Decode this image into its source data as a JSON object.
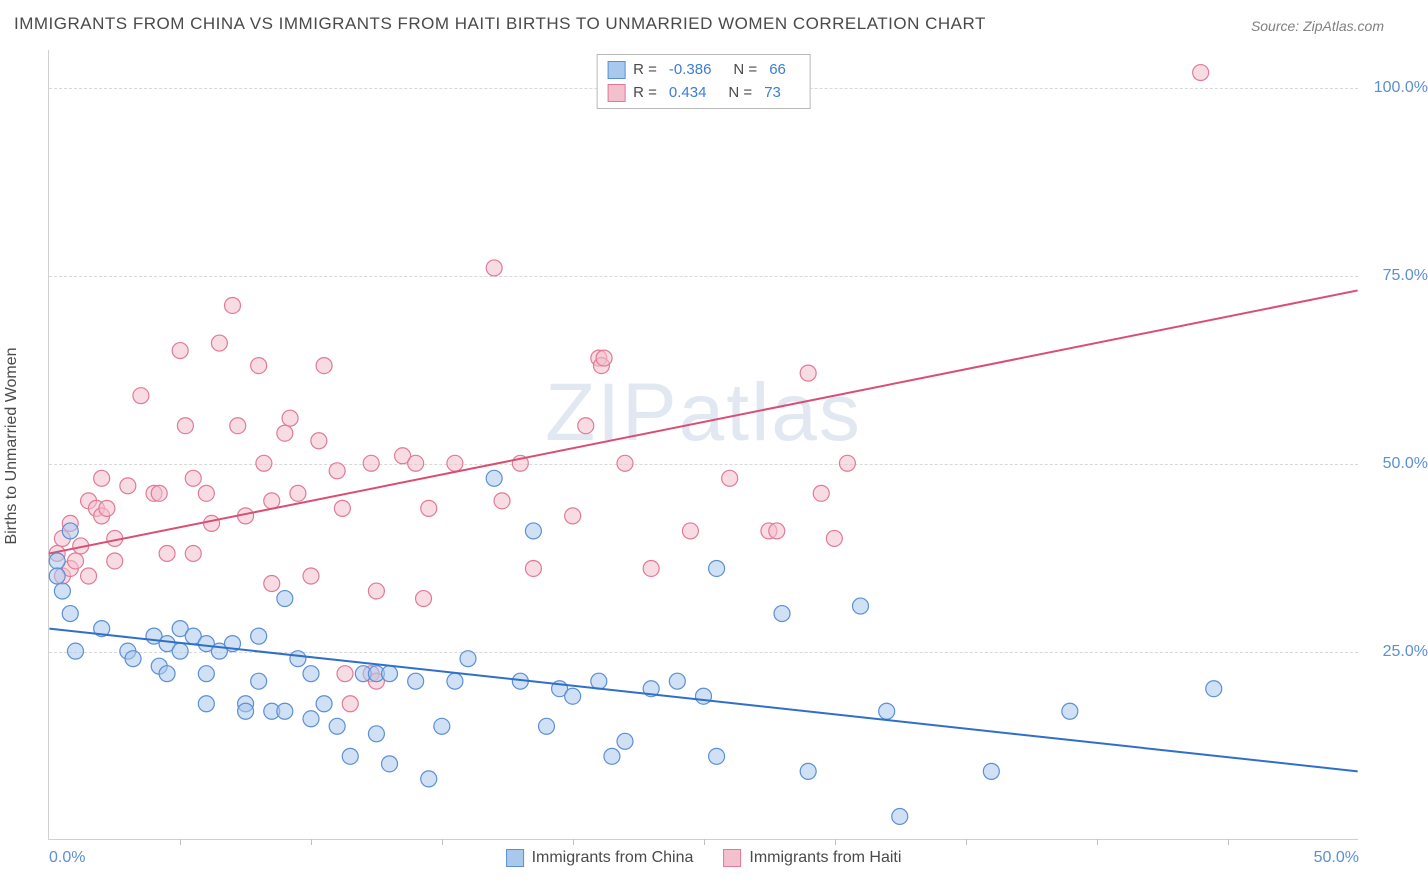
{
  "title": "IMMIGRANTS FROM CHINA VS IMMIGRANTS FROM HAITI BIRTHS TO UNMARRIED WOMEN CORRELATION CHART",
  "source": "Source: ZipAtlas.com",
  "ylabel": "Births to Unmarried Women",
  "watermark_bold": "ZIP",
  "watermark_light": "atlas",
  "chart": {
    "type": "scatter",
    "background_color": "#ffffff",
    "grid_color": "#d8d8d8",
    "axis_color": "#d0d0d0",
    "tick_label_color": "#5b8fd6",
    "tick_fontsize": 16,
    "title_fontsize": 17,
    "title_color": "#4a4a4a",
    "xlim": [
      0,
      50
    ],
    "ylim": [
      0,
      105
    ],
    "xticks": [
      0,
      50
    ],
    "xticks_minor": [
      5,
      10,
      15,
      20,
      25,
      30,
      35,
      40,
      45
    ],
    "xtick_labels": [
      "0.0%",
      "50.0%"
    ],
    "yticks": [
      25,
      50,
      75,
      100
    ],
    "ytick_labels": [
      "25.0%",
      "50.0%",
      "75.0%",
      "100.0%"
    ],
    "marker_radius": 8,
    "marker_opacity": 0.55,
    "marker_stroke_width": 1.2,
    "line_width": 2
  },
  "series": {
    "china": {
      "label": "Immigrants from China",
      "fill_color": "#a9c9ec",
      "stroke_color": "#5b8fd6",
      "line_color": "#2f6fc9",
      "R": "-0.386",
      "N": "66",
      "regression": {
        "x1": 0,
        "y1": 28,
        "x2": 50,
        "y2": 9
      },
      "points": [
        [
          0.3,
          37
        ],
        [
          0.3,
          35
        ],
        [
          0.5,
          33
        ],
        [
          0.8,
          41
        ],
        [
          0.8,
          30
        ],
        [
          1.0,
          25
        ],
        [
          2.0,
          28
        ],
        [
          3.0,
          25
        ],
        [
          3.2,
          24
        ],
        [
          4.0,
          27
        ],
        [
          4.2,
          23
        ],
        [
          4.5,
          22
        ],
        [
          4.5,
          26
        ],
        [
          5.0,
          28
        ],
        [
          5.0,
          25
        ],
        [
          5.5,
          27
        ],
        [
          6.0,
          26
        ],
        [
          6.0,
          22
        ],
        [
          6.0,
          18
        ],
        [
          6.5,
          25
        ],
        [
          7.0,
          26
        ],
        [
          7.5,
          18
        ],
        [
          7.5,
          17
        ],
        [
          8.0,
          27
        ],
        [
          8.0,
          21
        ],
        [
          8.5,
          17
        ],
        [
          9.0,
          17
        ],
        [
          9.0,
          32
        ],
        [
          9.5,
          24
        ],
        [
          10.0,
          16
        ],
        [
          10.0,
          22
        ],
        [
          10.5,
          18
        ],
        [
          11.0,
          15
        ],
        [
          11.5,
          11
        ],
        [
          12.0,
          22
        ],
        [
          12.5,
          22
        ],
        [
          12.5,
          14
        ],
        [
          13.0,
          22
        ],
        [
          13.0,
          10
        ],
        [
          14.0,
          21
        ],
        [
          14.5,
          8
        ],
        [
          15.0,
          15
        ],
        [
          15.5,
          21
        ],
        [
          16.0,
          24
        ],
        [
          17.0,
          48
        ],
        [
          18.0,
          21
        ],
        [
          18.5,
          41
        ],
        [
          19.0,
          15
        ],
        [
          19.5,
          20
        ],
        [
          20.0,
          19
        ],
        [
          21.0,
          21
        ],
        [
          21.5,
          11
        ],
        [
          22.0,
          13
        ],
        [
          23.0,
          20
        ],
        [
          24.0,
          21
        ],
        [
          25.0,
          19
        ],
        [
          25.5,
          36
        ],
        [
          25.5,
          11
        ],
        [
          28.0,
          30
        ],
        [
          29.0,
          9
        ],
        [
          31.0,
          31
        ],
        [
          32.0,
          17
        ],
        [
          36.0,
          9
        ],
        [
          39.0,
          17
        ],
        [
          44.5,
          20
        ],
        [
          32.5,
          3
        ]
      ]
    },
    "haiti": {
      "label": "Immigrants from Haiti",
      "fill_color": "#f3c0cd",
      "stroke_color": "#e27a95",
      "line_color": "#d94e73",
      "R": "0.434",
      "N": "73",
      "regression": {
        "x1": 0,
        "y1": 38,
        "x2": 50,
        "y2": 73
      },
      "points": [
        [
          0.3,
          38
        ],
        [
          0.5,
          35
        ],
        [
          0.5,
          40
        ],
        [
          0.8,
          36
        ],
        [
          0.8,
          42
        ],
        [
          1.0,
          37
        ],
        [
          1.2,
          39
        ],
        [
          1.5,
          35
        ],
        [
          1.5,
          45
        ],
        [
          1.8,
          44
        ],
        [
          2.0,
          43
        ],
        [
          2.0,
          48
        ],
        [
          2.2,
          44
        ],
        [
          2.5,
          37
        ],
        [
          2.5,
          40
        ],
        [
          3.0,
          47
        ],
        [
          3.5,
          59
        ],
        [
          4.0,
          46
        ],
        [
          4.2,
          46
        ],
        [
          4.5,
          38
        ],
        [
          5.0,
          65
        ],
        [
          5.2,
          55
        ],
        [
          5.5,
          48
        ],
        [
          5.5,
          38
        ],
        [
          6.0,
          46
        ],
        [
          6.2,
          42
        ],
        [
          6.5,
          66
        ],
        [
          7.0,
          71
        ],
        [
          7.2,
          55
        ],
        [
          7.5,
          43
        ],
        [
          8.0,
          63
        ],
        [
          8.2,
          50
        ],
        [
          8.5,
          45
        ],
        [
          8.5,
          34
        ],
        [
          9.0,
          54
        ],
        [
          9.2,
          56
        ],
        [
          9.5,
          46
        ],
        [
          10.0,
          35
        ],
        [
          10.3,
          53
        ],
        [
          10.5,
          63
        ],
        [
          11.0,
          49
        ],
        [
          11.2,
          44
        ],
        [
          11.3,
          22
        ],
        [
          11.5,
          18
        ],
        [
          12.3,
          50
        ],
        [
          12.3,
          22
        ],
        [
          12.5,
          33
        ],
        [
          12.5,
          21
        ],
        [
          13.5,
          51
        ],
        [
          14.0,
          50
        ],
        [
          14.3,
          32
        ],
        [
          14.5,
          44
        ],
        [
          15.5,
          50
        ],
        [
          17.0,
          76
        ],
        [
          17.3,
          45
        ],
        [
          18.0,
          50
        ],
        [
          18.5,
          36
        ],
        [
          20.0,
          43
        ],
        [
          20.5,
          55
        ],
        [
          21.0,
          64
        ],
        [
          21.1,
          63
        ],
        [
          21.2,
          64
        ],
        [
          22.0,
          50
        ],
        [
          23.0,
          36
        ],
        [
          24.5,
          41
        ],
        [
          26.0,
          48
        ],
        [
          27.5,
          41
        ],
        [
          29.0,
          62
        ],
        [
          30.5,
          50
        ],
        [
          27.8,
          41
        ],
        [
          29.5,
          46
        ],
        [
          30.0,
          40
        ],
        [
          44.0,
          102
        ]
      ]
    }
  },
  "legend_top": {
    "R_label": "R =",
    "N_label": "N ="
  }
}
